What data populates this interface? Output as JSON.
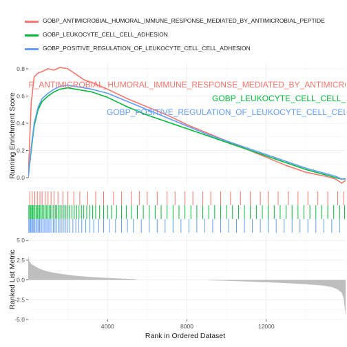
{
  "chart_data": {
    "type": "line",
    "title": "",
    "xlabel": "Rank in Ordered Dataset",
    "xlim": [
      0,
      16000
    ],
    "x_ticks": [
      4000,
      8000,
      12000
    ],
    "grid": true,
    "legend_position": "top",
    "series": [
      {
        "name": "GOBP_ANTIMICROBIAL_HUMORAL_IMMUNE_RESPONSE_MEDIATED_BY_ANTIMICROBIAL_PEPTIDE",
        "color": "#f8766d",
        "annotation": "GOBP_ANTIMICROBIAL_HUMORAL_IMMUNE_RESPONSE_MEDIATED_BY_ANTIMICROBIAL_PEPTIDE",
        "x": [
          0,
          150,
          300,
          500,
          700,
          1000,
          1300,
          1600,
          2000,
          2400,
          2800,
          3200,
          4000,
          5000,
          6000,
          7000,
          8000,
          9000,
          10000,
          11000,
          12000,
          13000,
          14000,
          15000,
          15500,
          15800,
          16000
        ],
        "es": [
          0.0,
          0.55,
          0.74,
          0.77,
          0.78,
          0.8,
          0.79,
          0.81,
          0.8,
          0.76,
          0.72,
          0.7,
          0.65,
          0.58,
          0.52,
          0.46,
          0.39,
          0.33,
          0.27,
          0.21,
          0.15,
          0.09,
          0.04,
          0.01,
          -0.01,
          -0.04,
          -0.02
        ],
        "hits": [
          80,
          200,
          330,
          460,
          590,
          700,
          860,
          1000,
          1150,
          1300,
          1500,
          1750,
          2000,
          2300,
          2600,
          3000,
          3400,
          3800,
          4300,
          4700,
          5200,
          5600,
          6000,
          6500,
          7000,
          7400,
          7900,
          8300,
          8800,
          9200,
          9700,
          10200,
          10700,
          11200,
          11700,
          12100,
          12600,
          13100,
          13600,
          14100,
          14600,
          15100,
          15600,
          15900
        ]
      },
      {
        "name": "GOBP_LEUKOCYTE_CELL_CELL_ADHESION",
        "color": "#00ba38",
        "annotation": "GOBP_LEUKOCYTE_CELL_CELL_ADHESION",
        "x": [
          0,
          150,
          300,
          500,
          700,
          1000,
          1300,
          1600,
          2000,
          2400,
          2800,
          3200,
          4000,
          5000,
          6000,
          7000,
          8000,
          9000,
          10000,
          11000,
          12000,
          13000,
          14000,
          15000,
          15500,
          15800,
          16000
        ],
        "es": [
          0.0,
          0.2,
          0.38,
          0.5,
          0.56,
          0.6,
          0.63,
          0.65,
          0.66,
          0.65,
          0.64,
          0.63,
          0.59,
          0.52,
          0.46,
          0.41,
          0.36,
          0.31,
          0.26,
          0.21,
          0.16,
          0.11,
          0.06,
          0.02,
          0.0,
          -0.01,
          -0.01
        ],
        "hits": [
          30,
          80,
          130,
          180,
          230,
          280,
          340,
          400,
          460,
          520,
          580,
          640,
          700,
          770,
          840,
          910,
          980,
          1050,
          1120,
          1200,
          1280,
          1360,
          1440,
          1520,
          1600,
          1700,
          1800,
          1900,
          2000,
          2100,
          2200,
          2320,
          2440,
          2560,
          2680,
          2800,
          2950,
          3100,
          3250,
          3400,
          3600,
          3800,
          4000,
          4200,
          4450,
          4700,
          4950,
          5200,
          5500,
          5800,
          6100,
          6400,
          6700,
          7000,
          7300,
          7600,
          7900,
          8200,
          8500,
          8800,
          9100,
          9400,
          9700,
          10000,
          10300,
          10600,
          10900,
          11200,
          11500,
          11800,
          12100,
          12400,
          12700,
          13000,
          13300,
          13600,
          13900,
          14200,
          14500,
          14800,
          15100,
          15400,
          15700,
          15950
        ]
      },
      {
        "name": "GOBP_POSITIVE_REGULATION_OF_LEUKOCYTE_CELL_CELL_ADHESION",
        "color": "#619cff",
        "annotation": "GOBP_POSITIVE_REGULATION_OF_LEUKOCYTE_CELL_CELL_ADHESION",
        "x": [
          0,
          150,
          300,
          500,
          700,
          1000,
          1300,
          1600,
          2000,
          2400,
          2800,
          3200,
          4000,
          5000,
          6000,
          7000,
          8000,
          9000,
          10000,
          11000,
          12000,
          13000,
          14000,
          15000,
          15500,
          15800,
          16000
        ],
        "es": [
          0.0,
          0.22,
          0.4,
          0.52,
          0.58,
          0.62,
          0.65,
          0.67,
          0.68,
          0.67,
          0.66,
          0.65,
          0.62,
          0.56,
          0.5,
          0.44,
          0.38,
          0.32,
          0.27,
          0.22,
          0.17,
          0.12,
          0.07,
          0.03,
          0.01,
          -0.01,
          -0.01
        ],
        "hits": [
          25,
          70,
          120,
          170,
          220,
          270,
          330,
          390,
          450,
          510,
          570,
          630,
          690,
          760,
          830,
          900,
          970,
          1040,
          1110,
          1190,
          1270,
          1350,
          1430,
          1510,
          1600,
          1700,
          1800,
          1900,
          2000,
          2100,
          2250,
          2400,
          2550,
          2700,
          2900,
          3100,
          3300,
          3550,
          3800,
          4100,
          4400,
          4700,
          5000,
          5300,
          5700,
          6100,
          6500,
          6900,
          7300,
          7700,
          8100,
          8500,
          8900,
          9300,
          9700,
          10100,
          10500,
          10900,
          11300,
          11700,
          12100,
          12500,
          12900,
          13300,
          13700,
          14100,
          14500,
          14900,
          15300,
          15700
        ]
      }
    ],
    "enrichment_panel": {
      "ylabel": "Running Enrichment Score",
      "ylim": [
        -0.05,
        0.85
      ],
      "y_ticks": [
        "0.0",
        "0.2",
        "0.4",
        "0.6",
        "0.8"
      ]
    },
    "ranked_metric_panel": {
      "type": "area",
      "ylabel": "Ranked List Metric",
      "ylim": [
        -5.0,
        5.8
      ],
      "y_ticks": [
        "-5.0",
        "-2.5",
        "0.0",
        "2.5",
        "5.0"
      ],
      "fill_color": "#bebebe",
      "x": [
        0,
        50,
        150,
        300,
        500,
        800,
        1200,
        1700,
        2300,
        3000,
        3800,
        4600,
        5400,
        5500,
        9000,
        9100,
        10000,
        11000,
        12000,
        13000,
        14000,
        14800,
        15300,
        15600,
        15800,
        15900,
        16000
      ],
      "values": [
        3.1,
        2.4,
        2.0,
        1.8,
        1.5,
        1.2,
        0.95,
        0.75,
        0.55,
        0.4,
        0.28,
        0.18,
        0.1,
        0.0,
        0.0,
        -0.05,
        -0.1,
        -0.2,
        -0.3,
        -0.4,
        -0.55,
        -0.7,
        -0.9,
        -1.2,
        -1.6,
        -2.3,
        -4.5
      ]
    }
  }
}
